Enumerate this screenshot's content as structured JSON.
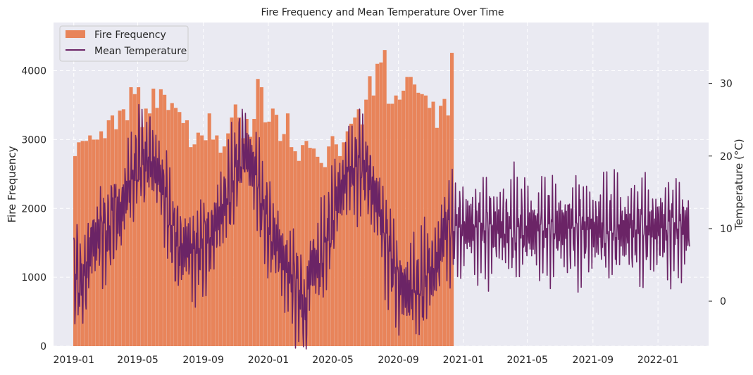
{
  "chart_data": {
    "type": "bar+line",
    "title": "Fire Frequency and Mean Temperature Over Time",
    "xlabel": "",
    "ylabel_left": "Fire Frequency",
    "ylabel_right": "Temperature (°C)",
    "x_tick_labels": [
      "2019-01",
      "2019-05",
      "2019-09",
      "2020-01",
      "2020-05",
      "2020-09",
      "2021-01",
      "2021-05",
      "2021-09",
      "2022-01"
    ],
    "y_left_ticks": [
      0,
      1000,
      2000,
      3000,
      4000
    ],
    "y_left_lim": [
      0,
      4700
    ],
    "y_right_ticks": [
      0,
      10,
      20,
      30
    ],
    "y_right_lim": [
      -6.2,
      38.4
    ],
    "grid": true,
    "legend_position": "upper left",
    "series": [
      {
        "name": "Fire Frequency",
        "kind": "bar",
        "color": "#E8845A",
        "start_week": "2018-12-31",
        "interval": "weekly",
        "values": [
          2760,
          2960,
          2980,
          2980,
          3060,
          3000,
          3000,
          3120,
          3020,
          3280,
          3350,
          3150,
          3420,
          3440,
          3280,
          3760,
          3660,
          3760,
          3180,
          3450,
          3380,
          3740,
          3460,
          3730,
          3650,
          3430,
          3530,
          3460,
          3400,
          3240,
          3280,
          2890,
          2930,
          3100,
          3060,
          2990,
          3380,
          3000,
          3060,
          2810,
          2900,
          3090,
          3320,
          3510,
          3320,
          3020,
          3300,
          3040,
          3300,
          3880,
          3760,
          3250,
          3260,
          3450,
          3360,
          2980,
          3080,
          3380,
          2890,
          2830,
          2690,
          2920,
          2980,
          2880,
          2870,
          2750,
          2660,
          2600,
          2900,
          3050,
          2930,
          2760,
          2960,
          3120,
          3230,
          3320,
          3440,
          3220,
          3580,
          3920,
          3640,
          4100,
          4120,
          4300,
          3520,
          3520,
          3640,
          3580,
          3710,
          3910,
          3910,
          3800,
          3680,
          3660,
          3640,
          3460,
          3550,
          3170,
          3490,
          3590,
          3350,
          4260
        ]
      },
      {
        "name": "Mean Temperature",
        "kind": "line",
        "color": "#6B2466",
        "axis": "right",
        "start_date": "2019-01-01",
        "end_date": "2022-03-01",
        "sample_interval_days": 7,
        "values": [
          4.0,
          3.5,
          2.2,
          3.2,
          6.0,
          9.0,
          8.0,
          10.0,
          9.5,
          9.0,
          11.0,
          12.5,
          11.5,
          13.0,
          15.0,
          16.5,
          17.0,
          19.0,
          20.0,
          18.5,
          20.0,
          19.5,
          18.0,
          17.0,
          15.0,
          13.5,
          10.0,
          8.5,
          7.5,
          7.0,
          7.5,
          7.0,
          6.5,
          7.0,
          7.5,
          8.0,
          8.5,
          9.0,
          10.5,
          11.5,
          13.0,
          14.5,
          15.5,
          17.5,
          19.0,
          20.5,
          21.0,
          19.0,
          18.5,
          17.5,
          14.0,
          12.0,
          10.5,
          9.0,
          8.0,
          7.5,
          5.5,
          4.5,
          3.5,
          3.0,
          1.5,
          1.0,
          -3.0,
          3.0,
          6.0,
          5.0,
          5.5,
          7.0,
          9.0,
          10.5,
          13.0,
          14.5,
          16.0,
          17.5,
          18.0,
          17.5,
          18.5,
          19.0,
          18.0,
          17.0,
          15.5,
          14.0,
          12.5,
          9.0,
          7.5,
          6.5,
          4.0,
          2.0,
          2.5,
          1.5,
          1.0,
          2.5,
          1.5,
          2.0,
          3.0,
          4.5,
          4.0,
          5.0,
          6.0,
          10.0
        ]
      }
    ]
  }
}
